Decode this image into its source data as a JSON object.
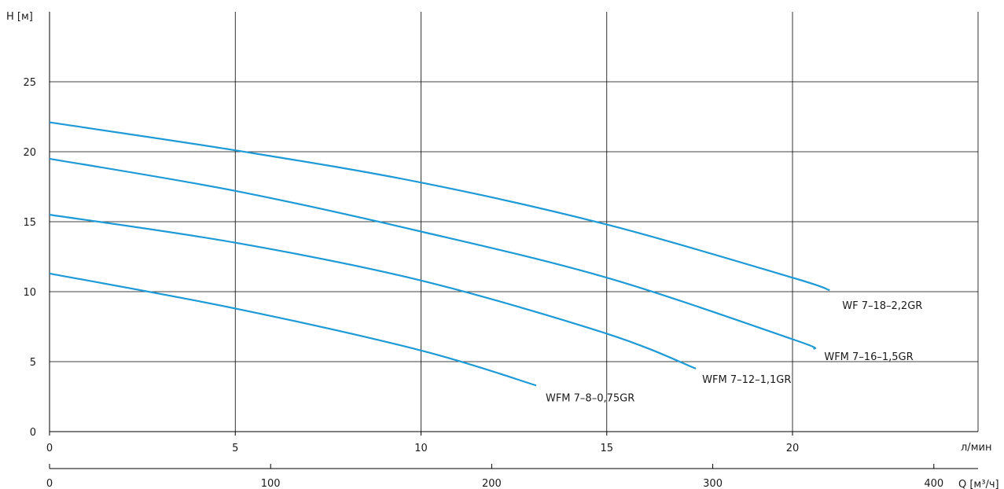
{
  "chart_data": {
    "type": "line",
    "ylabel": "H [м]",
    "xlabel": "л/мин",
    "x2label": "Q [м³/ч]",
    "xlim": [
      0,
      25
    ],
    "ylim": [
      0,
      30
    ],
    "x_ticks": [
      0,
      5,
      10,
      15,
      20
    ],
    "y_ticks": [
      0,
      5,
      10,
      15,
      20,
      25
    ],
    "x2lim": [
      0,
      420
    ],
    "x2_ticks": [
      0,
      100,
      200,
      300,
      400
    ],
    "grid": true,
    "line_color": "#1e9ad6",
    "series": [
      {
        "name": "WF 7–18–2,2GR",
        "x": [
          0,
          5,
          10,
          15,
          20,
          21
        ],
        "y": [
          22.1,
          20.1,
          17.8,
          14.8,
          11.0,
          10.1
        ]
      },
      {
        "name": "WFM 7–16–1,5GR",
        "x": [
          0,
          5,
          10,
          15,
          20,
          20.6
        ],
        "y": [
          19.5,
          17.2,
          14.3,
          11.0,
          6.6,
          5.9
        ]
      },
      {
        "name": "WFM 7–12–1,1GR",
        "x": [
          0,
          5,
          10,
          15,
          17.4
        ],
        "y": [
          15.5,
          13.5,
          10.8,
          7.0,
          4.5
        ]
      },
      {
        "name": "WFM 7–8–0,75GR",
        "x": [
          0,
          5,
          10,
          13.1
        ],
        "y": [
          11.3,
          8.8,
          5.8,
          3.3
        ]
      }
    ]
  }
}
